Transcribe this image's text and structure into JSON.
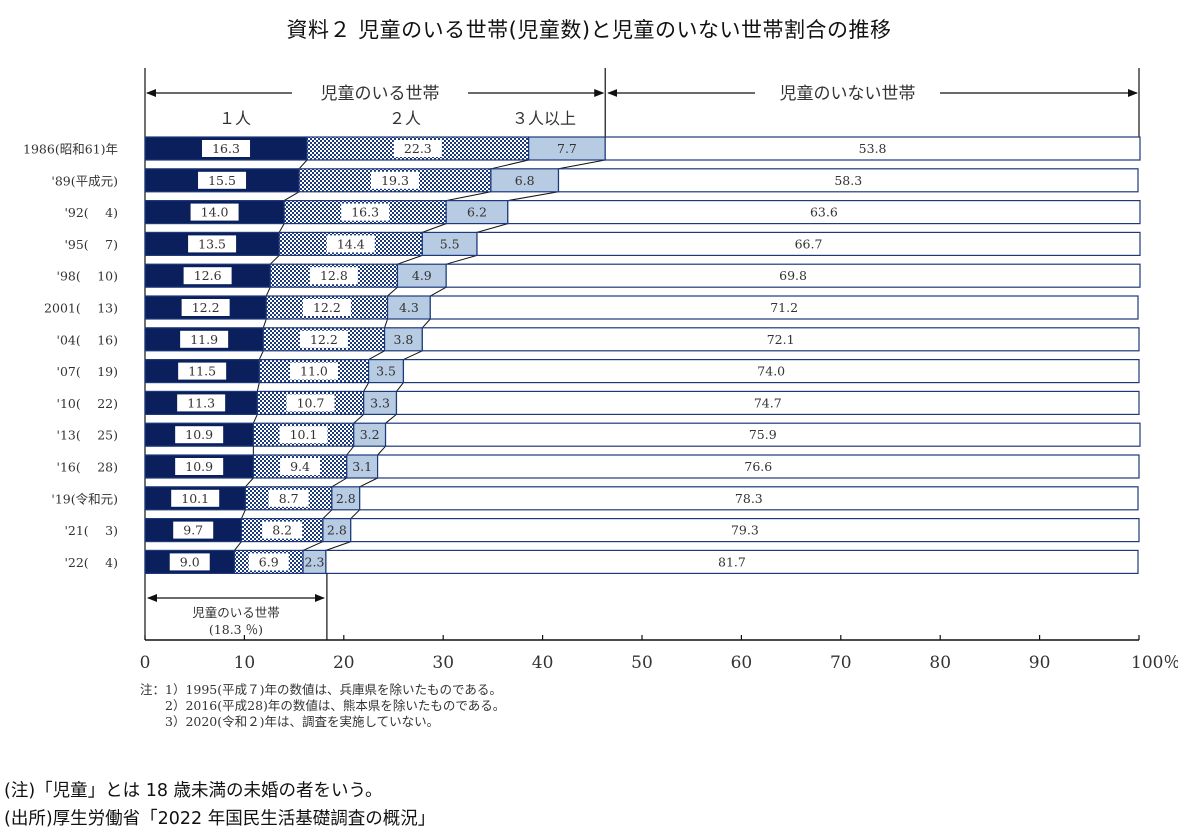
{
  "title": "資料２ 児童のいる世帯(児童数)と児童のいない世帯割合の推移",
  "colors": {
    "one": "#0b1f5c",
    "two_pattern": "#1c3a7a",
    "three": "#b7cbe3",
    "none": "#ffffff",
    "border": "#1c3a7a"
  },
  "chart_data": {
    "type": "bar",
    "orientation": "horizontal-stacked-100",
    "title": "資料２ 児童のいる世帯(児童数)と児童のいない世帯割合の推移",
    "xlim": [
      0,
      100
    ],
    "x_ticks": [
      "0",
      "10",
      "20",
      "30",
      "40",
      "50",
      "60",
      "70",
      "80",
      "90",
      "100％"
    ],
    "header": {
      "with_children": "児童のいる世帯",
      "without_children": "児童のいない世帯",
      "one": "１人",
      "two": "２人",
      "three": "３人以上"
    },
    "categories": [
      "1986(昭和61)年",
      "'89(平成元)",
      "'92(　 4)",
      "'95(　 7)",
      "'98(　 10)",
      "2001(　 13)",
      "'04(　 16)",
      "'07(　 19)",
      "'10(　 22)",
      "'13(　 25)",
      "'16(　 28)",
      "'19(令和元)",
      "'21(　 3)",
      "'22(　 4)"
    ],
    "series": [
      {
        "name": "１人",
        "values": [
          16.3,
          15.5,
          14.0,
          13.5,
          12.6,
          12.2,
          11.9,
          11.5,
          11.3,
          10.9,
          10.9,
          10.1,
          9.7,
          9.0
        ],
        "labels": [
          "16.3",
          "15.5",
          "14.0",
          "13.5",
          "12.6",
          "12.2",
          "11.9",
          "11.5",
          "11.3",
          "10.9",
          "10.9",
          "10.1",
          "9.7",
          "9.0"
        ]
      },
      {
        "name": "２人",
        "values": [
          22.3,
          19.3,
          16.3,
          14.4,
          12.8,
          12.2,
          12.2,
          11.0,
          10.7,
          10.1,
          9.4,
          8.7,
          8.2,
          6.9
        ],
        "labels": [
          "22.3",
          "19.3",
          "16.3",
          "14.4",
          "12.8",
          "12.2",
          "12.2",
          "11.0",
          "10.7",
          "10.1",
          "9.4",
          "8.7",
          "8.2",
          "6.9"
        ]
      },
      {
        "name": "３人以上",
        "values": [
          7.7,
          6.8,
          6.2,
          5.5,
          4.9,
          4.3,
          3.8,
          3.5,
          3.3,
          3.2,
          3.1,
          2.8,
          2.8,
          2.3
        ],
        "labels": [
          "7.7",
          "6.8",
          "6.2",
          "5.5",
          "4.9",
          "4.3",
          "3.8",
          "3.5",
          "3.3",
          "3.2",
          "3.1",
          "2.8",
          "2.8",
          "2.3"
        ]
      },
      {
        "name": "児童のいない世帯",
        "values": [
          53.8,
          58.3,
          63.6,
          66.7,
          69.8,
          71.2,
          72.1,
          74.0,
          74.7,
          75.9,
          76.6,
          78.3,
          79.3,
          81.7
        ],
        "labels": [
          "53.8",
          "58.3",
          "63.6",
          "66.7",
          "69.8",
          "71.2",
          "72.1",
          "74.0",
          "74.7",
          "75.9",
          "76.6",
          "78.3",
          "79.3",
          "81.7"
        ]
      }
    ],
    "annotation": {
      "label": "児童のいる世帯",
      "value_label": "(18.3 ％)",
      "value": 18.3
    }
  },
  "notes": [
    "注：1）1995(平成７)年の数値は、兵庫県を除いたものである。",
    "　　2）2016(平成28)年の数値は、熊本県を除いたものである。",
    "　　3）2020(令和２)年は、調査を実施していない。"
  ],
  "footer": [
    "(注)「児童」とは 18 歳未満の未婚の者をいう。",
    "(出所)厚生労働省「2022 年国民生活基礎調査の概況」"
  ]
}
